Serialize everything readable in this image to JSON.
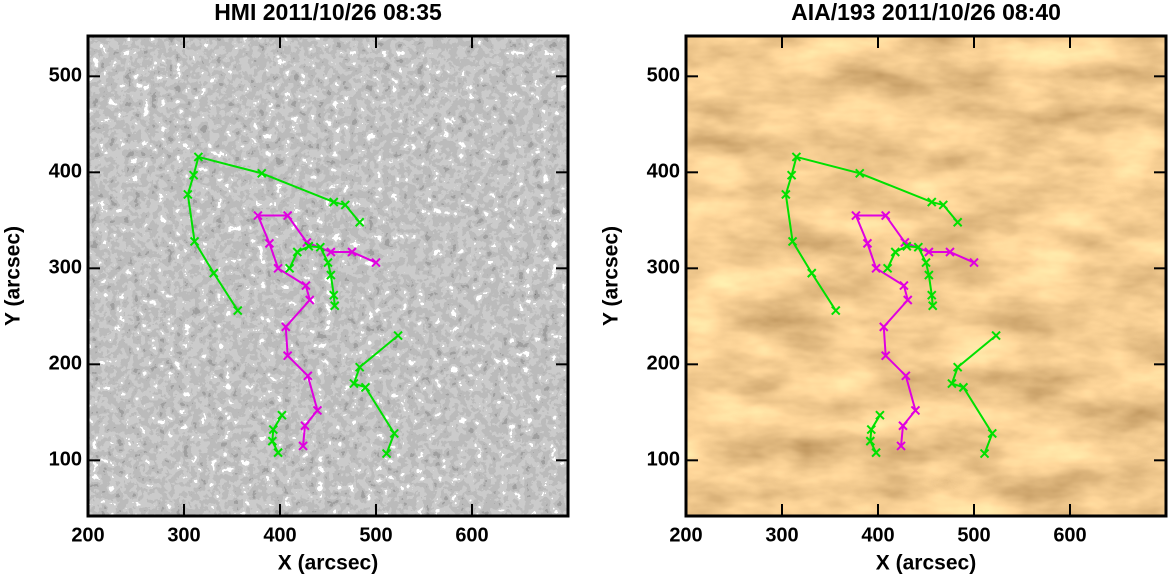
{
  "chart_data": [
    {
      "type": "line",
      "title": "HMI 2011/10/26 08:35",
      "background": "magnetogram",
      "xlabel": "X (arcsec)",
      "ylabel": "Y (arcsec)",
      "xlim": [
        200,
        700
      ],
      "ylim": [
        42,
        542
      ],
      "xticks": [
        200,
        300,
        400,
        500,
        600
      ],
      "yticks": [
        100,
        200,
        300,
        400,
        500
      ],
      "series": [
        {
          "color": "#00e000",
          "x": [
            356,
            331,
            311,
            304,
            310,
            315,
            381,
            456,
            468,
            483
          ],
          "values": [
            256,
            295,
            328,
            377,
            397,
            416,
            399,
            369,
            366,
            348
          ]
        },
        {
          "color": "#e000e0",
          "x": [
            500,
            475,
            453,
            428,
            408,
            377,
            389,
            398,
            427,
            431,
            406,
            408,
            429,
            439,
            426,
            424
          ],
          "values": [
            306,
            317,
            317,
            327,
            355,
            355,
            326,
            300,
            282,
            267,
            239,
            209,
            188,
            152,
            136,
            115
          ]
        },
        {
          "color": "#00e000",
          "x": [
            410,
            418,
            430,
            442,
            450,
            453,
            456,
            457
          ],
          "values": [
            300,
            317,
            323,
            322,
            306,
            293,
            272,
            261
          ]
        },
        {
          "color": "#00e000",
          "x": [
            523,
            483,
            477,
            489,
            519,
            511
          ],
          "values": [
            230,
            197,
            180,
            176,
            128,
            107
          ]
        },
        {
          "color": "#00e000",
          "x": [
            402,
            393,
            392,
            398
          ],
          "values": [
            147,
            132,
            120,
            108
          ]
        }
      ]
    },
    {
      "type": "line",
      "title": "AIA/193 2011/10/26 08:40",
      "background": "aia193",
      "xlabel": "X (arcsec)",
      "ylabel": "Y (arcsec)",
      "xlim": [
        200,
        700
      ],
      "ylim": [
        42,
        542
      ],
      "xticks": [
        200,
        300,
        400,
        500,
        600
      ],
      "yticks": [
        100,
        200,
        300,
        400,
        500
      ],
      "series": [
        {
          "color": "#00e000",
          "x": [
            356,
            331,
            311,
            304,
            310,
            315,
            381,
            456,
            468,
            483
          ],
          "values": [
            256,
            295,
            328,
            377,
            397,
            416,
            399,
            369,
            366,
            348
          ]
        },
        {
          "color": "#e000e0",
          "x": [
            500,
            475,
            453,
            428,
            408,
            377,
            389,
            398,
            427,
            431,
            406,
            408,
            429,
            439,
            426,
            424
          ],
          "values": [
            306,
            317,
            317,
            327,
            355,
            355,
            326,
            300,
            282,
            267,
            239,
            209,
            188,
            152,
            136,
            115
          ]
        },
        {
          "color": "#00e000",
          "x": [
            410,
            418,
            430,
            442,
            450,
            453,
            456,
            457
          ],
          "values": [
            300,
            317,
            323,
            322,
            306,
            293,
            272,
            261
          ]
        },
        {
          "color": "#00e000",
          "x": [
            523,
            483,
            477,
            489,
            519,
            511
          ],
          "values": [
            230,
            197,
            180,
            176,
            128,
            107
          ]
        },
        {
          "color": "#00e000",
          "x": [
            402,
            393,
            392,
            398
          ],
          "values": [
            147,
            132,
            120,
            108
          ]
        }
      ]
    }
  ]
}
